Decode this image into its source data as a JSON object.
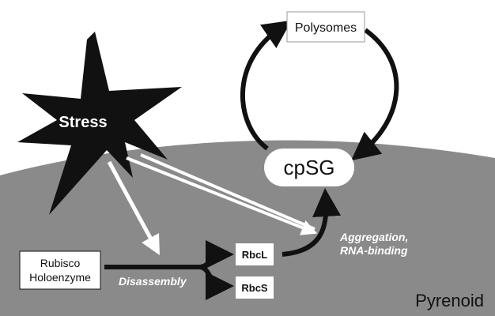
{
  "labels": {
    "stress": "Stress",
    "polysomes": "Polysomes",
    "cpsg": "cpSG",
    "rubisco_line1": "Rubisco",
    "rubisco_line2": "Holoenzyme",
    "rbcl": "RbcL",
    "rbcs": "RbcS",
    "disassembly": "Disassembly",
    "aggregation_line1": "Aggregation,",
    "aggregation_line2": "RNA-binding",
    "pyrenoid": "Pyrenoid"
  },
  "colors": {
    "pyrenoid_fill": "#8a8a8a",
    "stress_burst": "#111111",
    "arrow_dark": "#111111",
    "arrow_light": "#ffffff",
    "box_fill": "#ffffff"
  }
}
